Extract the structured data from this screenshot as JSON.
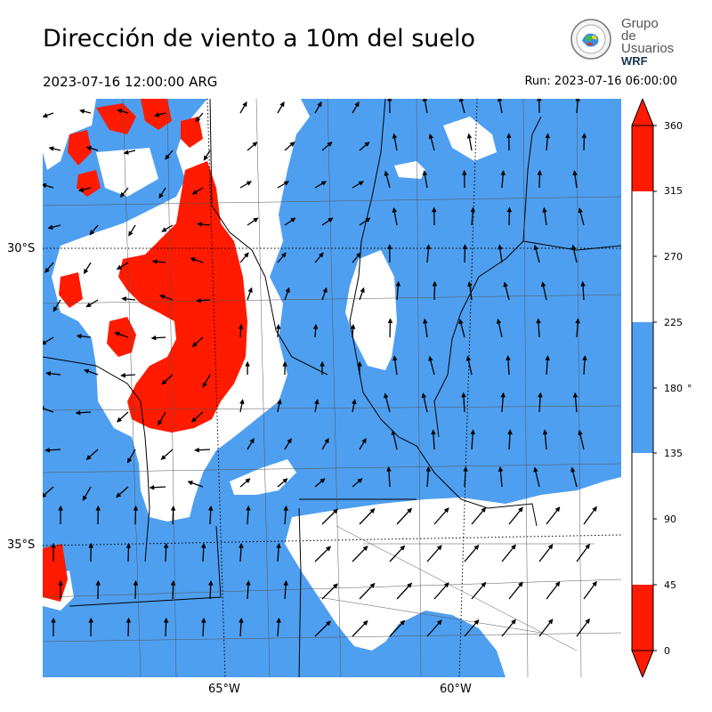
{
  "title": "Dirección de viento a 10m del suelo",
  "valid_time": "2023-07-16 12:00:00 ARG",
  "run_time": "Run: 2023-07-16 06:00:00",
  "logo": {
    "line1": "Grupo de",
    "line2": "Usuarios",
    "line3": "WRF"
  },
  "lat_labels": [
    "30°S",
    "35°S"
  ],
  "lon_labels": [
    "65°W",
    "60°W"
  ],
  "colorbar": {
    "ticks": [
      "360",
      "315",
      "270",
      "225",
      "180",
      "135",
      "90",
      "45",
      "0"
    ],
    "unit": "°",
    "bands": [
      {
        "from": 315,
        "to": 360,
        "color": "#ff1a00"
      },
      {
        "from": 225,
        "to": 315,
        "color": "#ffffff"
      },
      {
        "from": 135,
        "to": 225,
        "color": "#4e9ff0"
      },
      {
        "from": 45,
        "to": 135,
        "color": "#ffffff"
      },
      {
        "from": 0,
        "to": 45,
        "color": "#ff1a00"
      }
    ]
  },
  "colors": {
    "red": "#ff1a00",
    "blue": "#4e9ff0",
    "white": "#ffffff"
  }
}
